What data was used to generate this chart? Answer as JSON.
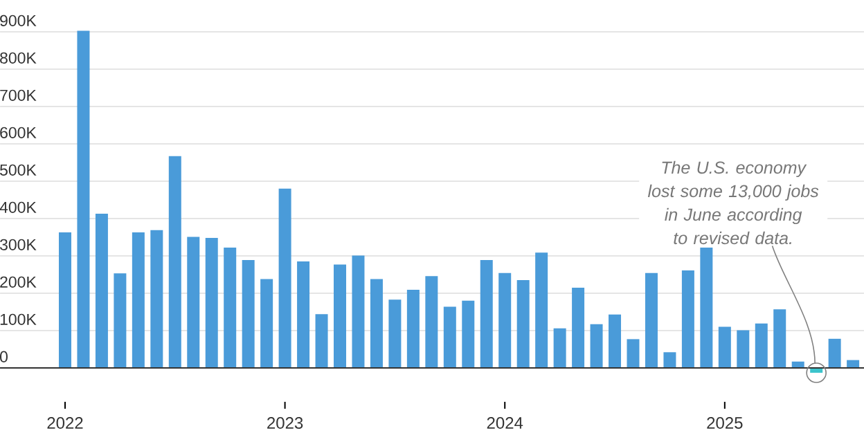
{
  "chart_data": {
    "type": "bar",
    "categories": [
      "2022",
      null,
      null,
      null,
      null,
      null,
      null,
      null,
      null,
      null,
      null,
      null,
      "2023",
      null,
      null,
      null,
      null,
      null,
      null,
      null,
      null,
      null,
      null,
      null,
      "2024",
      null,
      null,
      null,
      null,
      null,
      null,
      null,
      null,
      null,
      null,
      null,
      "2025",
      null,
      null,
      null,
      null,
      null,
      null,
      null
    ],
    "values": [
      363000,
      903000,
      413000,
      253000,
      363000,
      369000,
      567000,
      351000,
      348000,
      322000,
      289000,
      238000,
      480000,
      285000,
      144000,
      277000,
      301000,
      238000,
      183000,
      209000,
      246000,
      164000,
      180000,
      289000,
      254000,
      235000,
      309000,
      106000,
      215000,
      117000,
      143000,
      77000,
      254000,
      42000,
      261000,
      322000,
      110000,
      101000,
      119000,
      157000,
      17000,
      -13000,
      78000,
      21000
    ],
    "colors": [
      "#4a9bd9",
      "#4a9bd9",
      "#4a9bd9",
      "#4a9bd9",
      "#4a9bd9",
      "#4a9bd9",
      "#4a9bd9",
      "#4a9bd9",
      "#4a9bd9",
      "#4a9bd9",
      "#4a9bd9",
      "#4a9bd9",
      "#4a9bd9",
      "#4a9bd9",
      "#4a9bd9",
      "#4a9bd9",
      "#4a9bd9",
      "#4a9bd9",
      "#4a9bd9",
      "#4a9bd9",
      "#4a9bd9",
      "#4a9bd9",
      "#4a9bd9",
      "#4a9bd9",
      "#4a9bd9",
      "#4a9bd9",
      "#4a9bd9",
      "#4a9bd9",
      "#4a9bd9",
      "#4a9bd9",
      "#4a9bd9",
      "#4a9bd9",
      "#4a9bd9",
      "#4a9bd9",
      "#4a9bd9",
      "#4a9bd9",
      "#4a9bd9",
      "#4a9bd9",
      "#4a9bd9",
      "#4a9bd9",
      "#4a9bd9",
      "#3cc4cc",
      "#4a9bd9",
      "#4a9bd9"
    ],
    "ylim": [
      -13000,
      903000
    ],
    "yticks": [
      {
        "value": 0,
        "label": "0"
      },
      {
        "value": 100000,
        "label": "100K"
      },
      {
        "value": 200000,
        "label": "200K"
      },
      {
        "value": 300000,
        "label": "300K"
      },
      {
        "value": 400000,
        "label": "400K"
      },
      {
        "value": 500000,
        "label": "500K"
      },
      {
        "value": 600000,
        "label": "600K"
      },
      {
        "value": 700000,
        "label": "700K"
      },
      {
        "value": 800000,
        "label": "800K"
      },
      {
        "value": 900000,
        "label": "900K"
      }
    ],
    "grid": "y",
    "annotations": [
      "The U.S. economy lost some 13,000 jobs in June according to revised data."
    ]
  }
}
